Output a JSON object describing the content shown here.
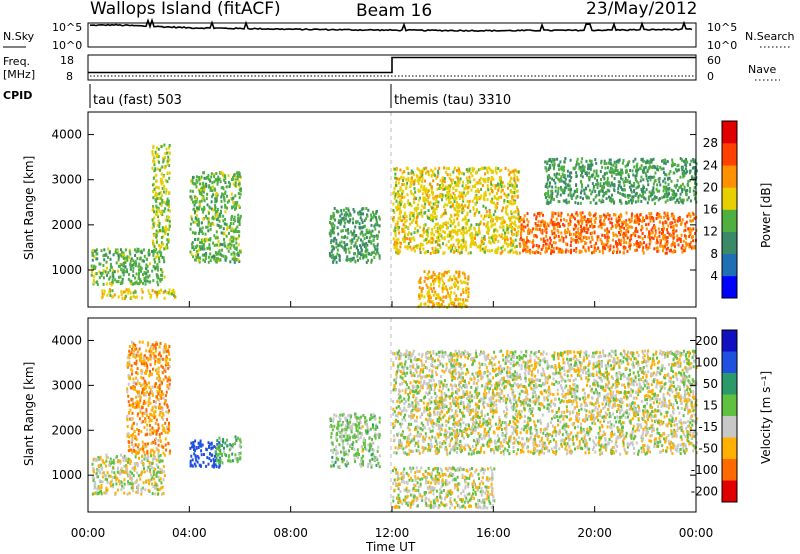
{
  "header": {
    "station": "Wallops Island (fitACF)",
    "beam": "Beam 16",
    "date": "23/May/2012"
  },
  "noise_panel": {
    "left_label": "N.Sky",
    "left_top_tick": "10^5",
    "left_bottom_tick": "10^0",
    "right_top_tick": "10^5",
    "right_bottom_tick": "10^0",
    "right_label": "N.Search"
  },
  "freq_panel": {
    "left_label_1": "Freq.",
    "left_label_2": "[MHz]",
    "left_top_tick": "18",
    "left_bottom_tick": "8",
    "right_top_tick": "60",
    "right_bottom_tick": "0",
    "right_label": "Nave"
  },
  "cpid_panel": {
    "label": "CPID",
    "mode_1": "tau (fast) 503",
    "mode_2": "themis (tau) 3310"
  },
  "power_panel": {
    "ylabel": "Slant Range [km]",
    "yticks": [
      "1000",
      "2000",
      "3000",
      "4000"
    ],
    "colorbar_label": "Power [dB]",
    "colorbar_ticks": [
      "4",
      "8",
      "12",
      "16",
      "20",
      "24",
      "28"
    ],
    "colorbar_colors": [
      "#0000ff",
      "#1f6fb4",
      "#3a8a6a",
      "#4fb040",
      "#e8d000",
      "#ff9000",
      "#ff4000",
      "#e00000"
    ]
  },
  "velocity_panel": {
    "ylabel": "Slant Range [km]",
    "yticks": [
      "1000",
      "2000",
      "3000",
      "4000"
    ],
    "colorbar_label": "Velocity [m s⁻¹]",
    "colorbar_ticks": [
      "200",
      "100",
      "50",
      "15",
      "-15",
      "-50",
      "-100",
      "-200"
    ],
    "colorbar_colors": [
      "#1010c0",
      "#2050e0",
      "#2a9a6a",
      "#60c040",
      "#c8c8c8",
      "#ffb000",
      "#ff6a00",
      "#e00000"
    ]
  },
  "x_axis": {
    "ticks": [
      "00:00",
      "04:00",
      "08:00",
      "12:00",
      "16:00",
      "20:00",
      "00:00"
    ],
    "label": "Time UT"
  },
  "chart_data": [
    {
      "type": "line",
      "x_unit": "hours UT",
      "x": [
        0,
        1,
        4,
        8,
        12,
        16,
        20,
        24
      ],
      "series": [
        {
          "name": "N.Sky",
          "values": [
            4.5,
            4.6,
            4.0,
            3.7,
            3.5,
            3.4,
            3.5,
            3.7
          ]
        }
      ],
      "ylim": [
        0,
        5
      ]
    },
    {
      "type": "line",
      "x_unit": "hours UT",
      "x": [
        0,
        12,
        12,
        24
      ],
      "series": [
        {
          "name": "Freq.",
          "values": [
            11,
            11,
            17,
            17
          ]
        }
      ],
      "ylim": [
        8,
        18
      ]
    },
    {
      "type": "heatmap",
      "ylabel": "Slant Range [km]",
      "colorbar_label": "Power [dB]",
      "xlim": [
        0,
        24
      ],
      "ylim": [
        180,
        4500
      ],
      "clim": [
        0,
        32
      ],
      "regions": [
        {
          "x": [
            0.1,
            3.0
          ],
          "y": [
            700,
            1500
          ],
          "value": 14
        },
        {
          "x": [
            0.5,
            3.5
          ],
          "y": [
            400,
            600
          ],
          "value": 18
        },
        {
          "x": [
            2.5,
            3.2
          ],
          "y": [
            1500,
            3800
          ],
          "value": 16
        },
        {
          "x": [
            4.0,
            6.0
          ],
          "y": [
            1200,
            3200
          ],
          "value": 14
        },
        {
          "x": [
            9.5,
            11.5
          ],
          "y": [
            1200,
            2400
          ],
          "value": 12
        },
        {
          "x": [
            12.0,
            17.0
          ],
          "y": [
            1400,
            3300
          ],
          "value": 18
        },
        {
          "x": [
            13.0,
            15.0
          ],
          "y": [
            200,
            1000
          ],
          "value": 20
        },
        {
          "x": [
            17.0,
            24.0
          ],
          "y": [
            1400,
            2300
          ],
          "value": 24
        },
        {
          "x": [
            18.0,
            24.0
          ],
          "y": [
            2500,
            3500
          ],
          "value": 12
        }
      ]
    },
    {
      "type": "heatmap",
      "ylabel": "Slant Range [km]",
      "colorbar_label": "Velocity [m s⁻¹]",
      "xlim": [
        0,
        24
      ],
      "ylim": [
        180,
        4500
      ],
      "clim": [
        -200,
        200
      ],
      "regions": [
        {
          "x": [
            0.1,
            3.0
          ],
          "y": [
            600,
            1500
          ],
          "value": 0
        },
        {
          "x": [
            1.5,
            3.2
          ],
          "y": [
            1500,
            4000
          ],
          "value": -40
        },
        {
          "x": [
            4.0,
            5.2
          ],
          "y": [
            1200,
            1800
          ],
          "value": 150
        },
        {
          "x": [
            5.0,
            6.0
          ],
          "y": [
            1300,
            1900
          ],
          "value": 40
        },
        {
          "x": [
            9.5,
            11.5
          ],
          "y": [
            1200,
            2400
          ],
          "value": 20
        },
        {
          "x": [
            12.0,
            24.0
          ],
          "y": [
            1500,
            3800
          ],
          "value": 0
        },
        {
          "x": [
            12.0,
            16.0
          ],
          "y": [
            300,
            1200
          ],
          "value": 0
        }
      ]
    }
  ]
}
